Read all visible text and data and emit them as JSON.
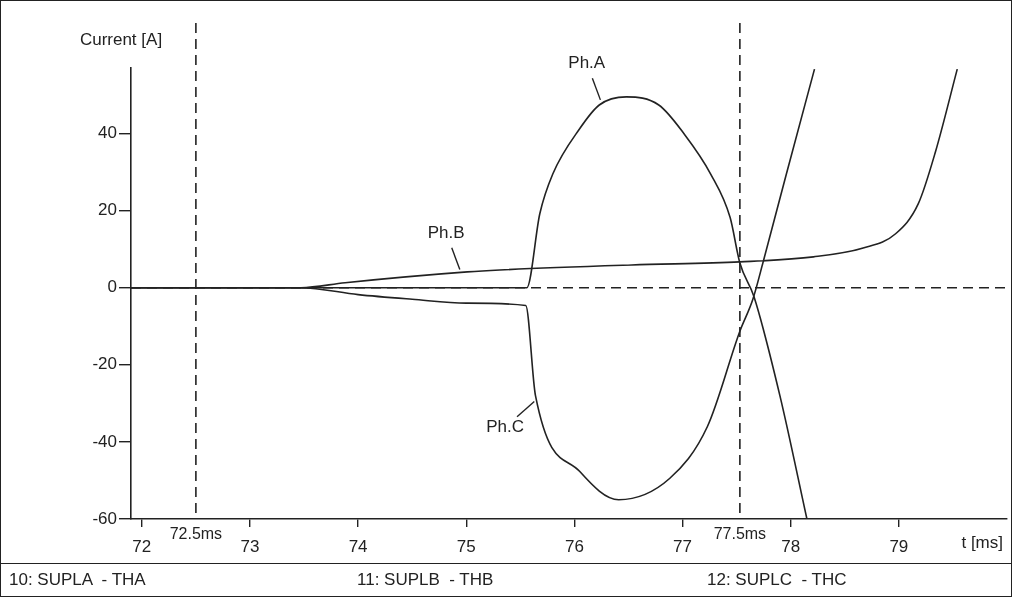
{
  "chart_data": {
    "type": "line",
    "xlabel": "t [ms]",
    "ylabel": "Current [A]",
    "xlim": [
      71.9,
      80
    ],
    "xticks": [
      72,
      73,
      74,
      75,
      76,
      77,
      78,
      79
    ],
    "ylim": [
      -60,
      57
    ],
    "yticks": [
      -60,
      -40,
      -20,
      0,
      20,
      40
    ],
    "grid": false,
    "legend": false,
    "marker": "none",
    "line_style": "solid",
    "series": [
      {
        "color": "#222222",
        "x": [
          71.9,
          73.47,
          75.56,
          75.68,
          75.8,
          76.05,
          76.23,
          76.48,
          76.78,
          77.02,
          77.26,
          77.44,
          77.53,
          77.66,
          77.9,
          78.15
        ],
        "values": [
          0,
          0,
          0,
          19.2,
          29.5,
          41.3,
          47.4,
          49.5,
          47.4,
          39.7,
          29.5,
          18.2,
          6.4,
          -2.3,
          -28,
          -60
        ]
      },
      {
        "color": "#222222",
        "x": [
          71.9,
          73.47,
          73.88,
          75.01,
          75.31,
          76.53,
          77.53,
          78.21,
          78.67,
          78.97,
          79.18,
          79.34,
          79.54
        ],
        "values": [
          0,
          0,
          1.3,
          4.1,
          4.6,
          5.9,
          6.7,
          8,
          10.3,
          14,
          21.8,
          35.4,
          56.7
        ]
      },
      {
        "color": "#222222",
        "x": [
          71.9,
          73.47,
          74,
          74.5,
          75,
          75.55,
          75.64,
          76.05,
          76.41,
          76.88,
          77.23,
          77.53,
          77.65,
          77.75,
          77.96,
          78.22
        ],
        "values": [
          0,
          0,
          -1.8,
          -3,
          -4,
          -4.6,
          -28,
          -47.7,
          -55,
          -49.5,
          -36,
          -11.3,
          -3,
          7.2,
          29.5,
          56.7
        ]
      }
    ],
    "ref_lines": [
      {
        "axis": "x",
        "value": 72.5,
        "label": "72.5ms",
        "line_style": "dashed",
        "color": "#222222"
      },
      {
        "axis": "x",
        "value": 77.53,
        "label": "77.5ms",
        "line_style": "dashed",
        "color": "#222222"
      },
      {
        "axis": "y",
        "value": 0,
        "line_style": "dashed",
        "color": "#222222"
      }
    ],
    "annotations": [
      {
        "text": "Ph.A",
        "x": 76.25,
        "y": 48
      },
      {
        "text": "Ph.B",
        "x": 74.95,
        "y": 4
      },
      {
        "text": "Ph.C",
        "x": 75.65,
        "y": -29
      },
      "10: SUPLA  - THA",
      "11: SUPLB  - THB",
      "12: SUPLC  - THC"
    ]
  }
}
